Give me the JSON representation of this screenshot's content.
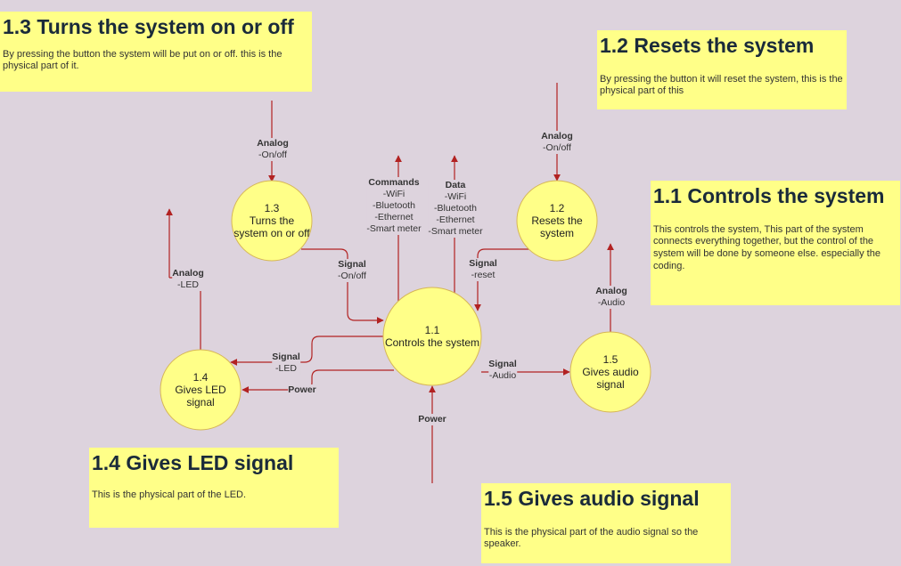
{
  "notes": {
    "n13": {
      "title": "1.3 Turns the system on or off",
      "text": "By pressing the button the system will be put on or off. this is the physical part of it."
    },
    "n12": {
      "title": "1.2 Resets the system",
      "text": "By pressing the button it will reset the system, this is the physical part of this"
    },
    "n11": {
      "title": "1.1 Controls the system",
      "text": "This controls the system, This part of the system connects everything together, but the control of the system will be done by someone else. especially the coding."
    },
    "n14": {
      "title": "1.4 Gives LED signal",
      "text": "This is the physical part of the LED."
    },
    "n15": {
      "title": "1.5 Gives audio signal",
      "text": "This is the physical part of the audio signal so the speaker."
    }
  },
  "processes": {
    "p11": {
      "id": "1.1",
      "name": "Controls the system"
    },
    "p12": {
      "id": "1.2",
      "name1": "Resets the",
      "name2": "system"
    },
    "p13": {
      "id": "1.3",
      "name1": "Turns the",
      "name2": "system on or off"
    },
    "p14": {
      "id": "1.4",
      "name1": "Gives LED",
      "name2": "signal"
    },
    "p15": {
      "id": "1.5",
      "name1": "Gives audio",
      "name2": "signal"
    }
  },
  "flows": {
    "analog13": {
      "head": "Analog",
      "l1": "-On/off"
    },
    "analog12": {
      "head": "Analog",
      "l1": "-On/off"
    },
    "commands": {
      "head": "Commands",
      "l1": "-WiFi",
      "l2": "-Bluetooth",
      "l3": "-Ethernet",
      "l4": "-Smart meter"
    },
    "data": {
      "head": "Data",
      "l1": "-WiFi",
      "l2": "-Bluetooth",
      "l3": "-Ethernet",
      "l4": "-Smart meter"
    },
    "signalOnOff": {
      "head": "Signal",
      "l1": "-On/off"
    },
    "signalReset": {
      "head": "Signal",
      "l1": "-reset"
    },
    "analogLed": {
      "head": "Analog",
      "l1": "-LED"
    },
    "analogAudio": {
      "head": "Analog",
      "l1": "-Audio"
    },
    "signalLed": {
      "head": "Signal",
      "l1": "-LED"
    },
    "powerLed": {
      "head": "Power"
    },
    "signalAudio": {
      "head": "Signal",
      "l1": "-Audio"
    },
    "powerMain": {
      "head": "Power"
    }
  },
  "colors": {
    "background": "#ddd3dd",
    "note": "#ffff88",
    "node": "#ffff88",
    "nodeBorder": "#d6b656",
    "arrow": "#b22222"
  }
}
